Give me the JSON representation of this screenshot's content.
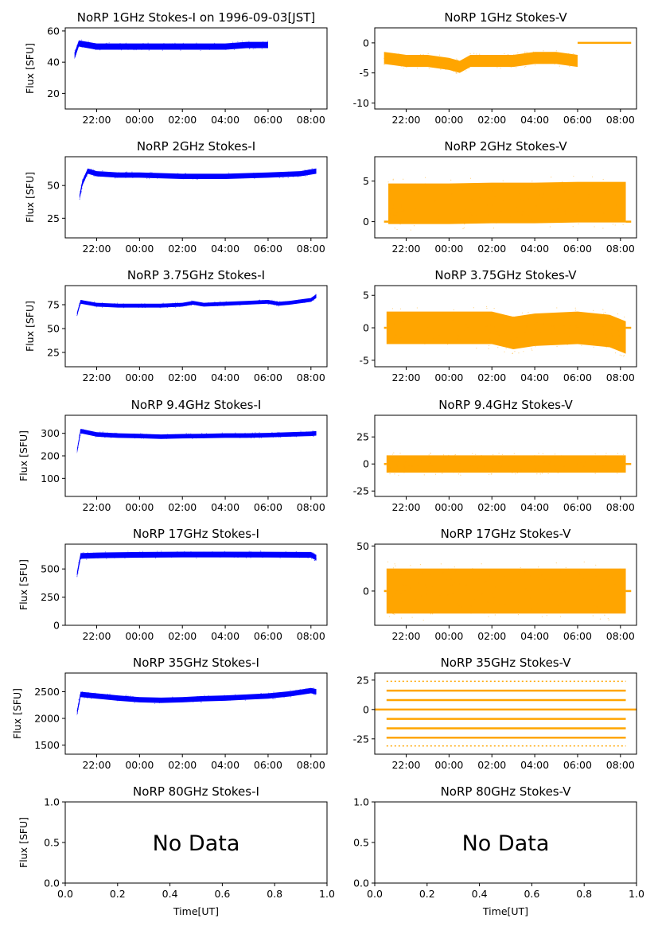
{
  "colors": {
    "stokes_i": "#0000ff",
    "stokes_v": "#ffa500"
  },
  "chart_data": [
    {
      "type": "scatter",
      "title": "NoRP 1GHz Stokes-I on 1996-09-03[JST]",
      "ylabel": "Flux [SFU]",
      "ylim": [
        10,
        62
      ],
      "yticks": [
        "20",
        "40",
        "60"
      ],
      "xticks": [
        "22:00",
        "00:00",
        "02:00",
        "04:00",
        "06:00",
        "08:00"
      ],
      "grid": false,
      "color": "#0000ff",
      "series": [
        {
          "x": [
            "20:58",
            "21:10",
            "22:00",
            "23:00",
            "00:00",
            "01:00",
            "02:00",
            "02:30",
            "03:00",
            "04:00",
            "05:00",
            "05:30",
            "06:00"
          ],
          "y": [
            44,
            52,
            50,
            50,
            50,
            50,
            50,
            50,
            50,
            50,
            51,
            51,
            51
          ],
          "spread": 2
        }
      ]
    },
    {
      "type": "scatter",
      "title": "NoRP 1GHz Stokes-V",
      "ylim": [
        -11,
        2.5
      ],
      "yticks": [
        "-10",
        "-5",
        "0"
      ],
      "xticks": [
        "22:00",
        "00:00",
        "02:00",
        "04:00",
        "06:00",
        "08:00"
      ],
      "grid": false,
      "color": "#ffa500",
      "series": [
        {
          "x": [
            "20:58",
            "22:00",
            "23:00",
            "00:00",
            "00:30",
            "01:00",
            "02:00",
            "03:00",
            "04:00",
            "05:00",
            "06:00"
          ],
          "y": [
            -2.5,
            -3,
            -3,
            -3.5,
            -4,
            -3,
            -3,
            -3,
            -2.5,
            -2.5,
            -3
          ],
          "spread": 1
        },
        {
          "x": [
            "06:00",
            "08:30"
          ],
          "y": [
            0,
            0
          ],
          "spread": 0
        }
      ]
    },
    {
      "type": "scatter",
      "title": "NoRP 2GHz Stokes-I",
      "ylabel": "Flux [SFU]",
      "ylim": [
        10,
        72
      ],
      "yticks": [
        "25",
        "50"
      ],
      "xticks": [
        "22:00",
        "00:00",
        "02:00",
        "04:00",
        "06:00",
        "08:00"
      ],
      "grid": false,
      "color": "#0000ff",
      "series": [
        {
          "x": [
            "21:12",
            "21:20",
            "21:35",
            "22:00",
            "23:00",
            "00:00",
            "02:00",
            "04:00",
            "06:00",
            "07:30",
            "08:15"
          ],
          "y": [
            41,
            52,
            61,
            59,
            58,
            58,
            57,
            57,
            58,
            59,
            61
          ],
          "spread": 2
        }
      ]
    },
    {
      "type": "scatter",
      "title": "NoRP 2GHz Stokes-V",
      "ylim": [
        -2,
        8
      ],
      "yticks": [
        "0",
        "5"
      ],
      "xticks": [
        "22:00",
        "00:00",
        "02:00",
        "04:00",
        "06:00",
        "08:00"
      ],
      "grid": false,
      "color": "#ffa500",
      "series": [
        {
          "x": [
            "21:10",
            "22:00",
            "00:00",
            "02:00",
            "04:00",
            "06:00",
            "08:15"
          ],
          "y": [
            2.2,
            2.2,
            2.2,
            2.3,
            2.3,
            2.4,
            2.4
          ],
          "spread": 2.5
        },
        {
          "x": [
            "20:58",
            "21:10"
          ],
          "y": [
            0,
            0
          ],
          "spread": 0
        },
        {
          "x": [
            "08:15",
            "08:30"
          ],
          "y": [
            0,
            0
          ],
          "spread": 0
        }
      ]
    },
    {
      "type": "scatter",
      "title": "NoRP 3.75GHz Stokes-I",
      "ylabel": "Flux [SFU]",
      "ylim": [
        10,
        95
      ],
      "yticks": [
        "25",
        "50",
        "75"
      ],
      "xticks": [
        "22:00",
        "00:00",
        "02:00",
        "04:00",
        "06:00",
        "08:00"
      ],
      "grid": false,
      "color": "#0000ff",
      "series": [
        {
          "x": [
            "21:05",
            "21:15",
            "22:00",
            "23:00",
            "00:00",
            "01:00",
            "02:00",
            "02:30",
            "03:00",
            "04:00",
            "05:00",
            "06:00",
            "06:30",
            "07:00",
            "08:00",
            "08:15"
          ],
          "y": [
            65,
            78,
            75,
            74,
            74,
            74,
            75,
            77,
            75,
            76,
            77,
            78,
            76,
            77,
            80,
            84
          ],
          "spread": 2
        }
      ]
    },
    {
      "type": "scatter",
      "title": "NoRP 3.75GHz Stokes-V",
      "ylim": [
        -6,
        6.5
      ],
      "yticks": [
        "-5",
        "0",
        "5"
      ],
      "xticks": [
        "22:00",
        "00:00",
        "02:00",
        "04:00",
        "06:00",
        "08:00"
      ],
      "grid": false,
      "color": "#ffa500",
      "series": [
        {
          "x": [
            "21:05",
            "22:00",
            "00:00",
            "02:00",
            "03:00",
            "04:00",
            "06:00",
            "07:30",
            "08:15"
          ],
          "y": [
            0,
            0,
            0,
            0,
            -0.8,
            -0.3,
            0,
            -0.5,
            -1.5
          ],
          "spread": 2.5
        },
        {
          "x": [
            "20:58",
            "21:05"
          ],
          "y": [
            0,
            0
          ],
          "spread": 0
        },
        {
          "x": [
            "08:15",
            "08:30"
          ],
          "y": [
            0,
            0
          ],
          "spread": 0
        }
      ]
    },
    {
      "type": "scatter",
      "title": "NoRP 9.4GHz Stokes-I",
      "ylabel": "Flux [SFU]",
      "ylim": [
        20,
        380
      ],
      "yticks": [
        "100",
        "200",
        "300"
      ],
      "xticks": [
        "22:00",
        "00:00",
        "02:00",
        "04:00",
        "06:00",
        "08:00"
      ],
      "grid": false,
      "color": "#0000ff",
      "series": [
        {
          "x": [
            "21:05",
            "21:15",
            "22:00",
            "23:00",
            "00:00",
            "01:00",
            "02:00",
            "03:00",
            "04:00",
            "05:00",
            "06:00",
            "07:00",
            "08:00",
            "08:15"
          ],
          "y": [
            220,
            310,
            295,
            290,
            288,
            285,
            287,
            288,
            290,
            290,
            292,
            295,
            298,
            300
          ],
          "spread": 10
        }
      ]
    },
    {
      "type": "scatter",
      "title": "NoRP 9.4GHz Stokes-V",
      "ylim": [
        -30,
        45
      ],
      "yticks": [
        "-25",
        "0",
        "25"
      ],
      "xticks": [
        "22:00",
        "00:00",
        "02:00",
        "04:00",
        "06:00",
        "08:00"
      ],
      "grid": false,
      "color": "#ffa500",
      "series": [
        {
          "x": [
            "21:05",
            "22:00",
            "00:00",
            "02:00",
            "04:00",
            "06:00",
            "08:15"
          ],
          "y": [
            0,
            0,
            0,
            0,
            0,
            0,
            0
          ],
          "spread": 8
        },
        {
          "x": [
            "20:58",
            "21:05"
          ],
          "y": [
            0,
            0
          ],
          "spread": 0
        },
        {
          "x": [
            "08:15",
            "08:30"
          ],
          "y": [
            0,
            0
          ],
          "spread": 0
        }
      ]
    },
    {
      "type": "scatter",
      "title": "NoRP 17GHz Stokes-I",
      "ylabel": "Flux [SFU]",
      "ylim": [
        0,
        720
      ],
      "yticks": [
        "0",
        "250",
        "500"
      ],
      "xticks": [
        "22:00",
        "00:00",
        "02:00",
        "04:00",
        "06:00",
        "08:00"
      ],
      "grid": false,
      "color": "#0000ff",
      "series": [
        {
          "x": [
            "21:05",
            "21:15",
            "22:00",
            "00:00",
            "02:00",
            "04:00",
            "06:00",
            "08:00",
            "08:15"
          ],
          "y": [
            450,
            615,
            620,
            625,
            628,
            628,
            627,
            625,
            600
          ],
          "spread": 25
        }
      ]
    },
    {
      "type": "scatter",
      "title": "NoRP 17GHz Stokes-V",
      "ylim": [
        -38,
        52
      ],
      "yticks": [
        "0",
        "50"
      ],
      "xticks": [
        "22:00",
        "00:00",
        "02:00",
        "04:00",
        "06:00",
        "08:00"
      ],
      "grid": false,
      "color": "#ffa500",
      "series": [
        {
          "x": [
            "21:05",
            "22:00",
            "00:00",
            "02:00",
            "04:00",
            "06:00",
            "08:15"
          ],
          "y": [
            0,
            0,
            0,
            0,
            0,
            0,
            0
          ],
          "spread": 25
        },
        {
          "x": [
            "20:58",
            "21:05"
          ],
          "y": [
            0,
            0
          ],
          "spread": 0
        },
        {
          "x": [
            "08:15",
            "08:30"
          ],
          "y": [
            0,
            0
          ],
          "spread": 0
        }
      ]
    },
    {
      "type": "scatter",
      "title": "NoRP 35GHz Stokes-I",
      "ylabel": "Flux [SFU]",
      "ylim": [
        1330,
        2850
      ],
      "yticks": [
        "1500",
        "2000",
        "2500"
      ],
      "xticks": [
        "22:00",
        "00:00",
        "02:00",
        "04:00",
        "06:00",
        "08:00"
      ],
      "grid": false,
      "color": "#0000ff",
      "series": [
        {
          "x": [
            "21:05",
            "21:15",
            "22:00",
            "23:00",
            "00:00",
            "01:00",
            "02:00",
            "03:00",
            "04:00",
            "05:00",
            "06:00",
            "07:00",
            "08:00",
            "08:15"
          ],
          "y": [
            2100,
            2450,
            2420,
            2380,
            2350,
            2340,
            2350,
            2370,
            2380,
            2400,
            2420,
            2460,
            2520,
            2500
          ],
          "spread": 50
        }
      ]
    },
    {
      "type": "scatter",
      "title": "NoRP 35GHz Stokes-V",
      "ylim": [
        -38,
        31
      ],
      "yticks": [
        "-25",
        "0",
        "25"
      ],
      "xticks": [
        "22:00",
        "00:00",
        "02:00",
        "04:00",
        "06:00",
        "08:00"
      ],
      "grid": false,
      "color": "#ffa500",
      "levels": [
        -31,
        -24,
        -16,
        -8,
        0,
        8,
        16,
        24
      ],
      "x_range": [
        "21:05",
        "08:15"
      ]
    },
    {
      "type": "scatter",
      "title": "NoRP 80GHz Stokes-I",
      "ylabel": "Flux [SFU]",
      "xlabel": "Time[UT]",
      "annotation": "No Data",
      "xlim": [
        0,
        1
      ],
      "ylim": [
        0,
        1
      ],
      "xticks": [
        "0.0",
        "0.2",
        "0.4",
        "0.6",
        "0.8",
        "1.0"
      ],
      "yticks": [
        "0.0",
        "0.5",
        "1.0"
      ],
      "grid": false
    },
    {
      "type": "scatter",
      "title": "NoRP 80GHz Stokes-V",
      "xlabel": "Time[UT]",
      "annotation": "No Data",
      "xlim": [
        0,
        1
      ],
      "ylim": [
        0,
        1
      ],
      "xticks": [
        "0.0",
        "0.2",
        "0.4",
        "0.6",
        "0.8",
        "1.0"
      ],
      "yticks": [
        "0.0",
        "0.5",
        "1.0"
      ],
      "grid": false
    }
  ]
}
